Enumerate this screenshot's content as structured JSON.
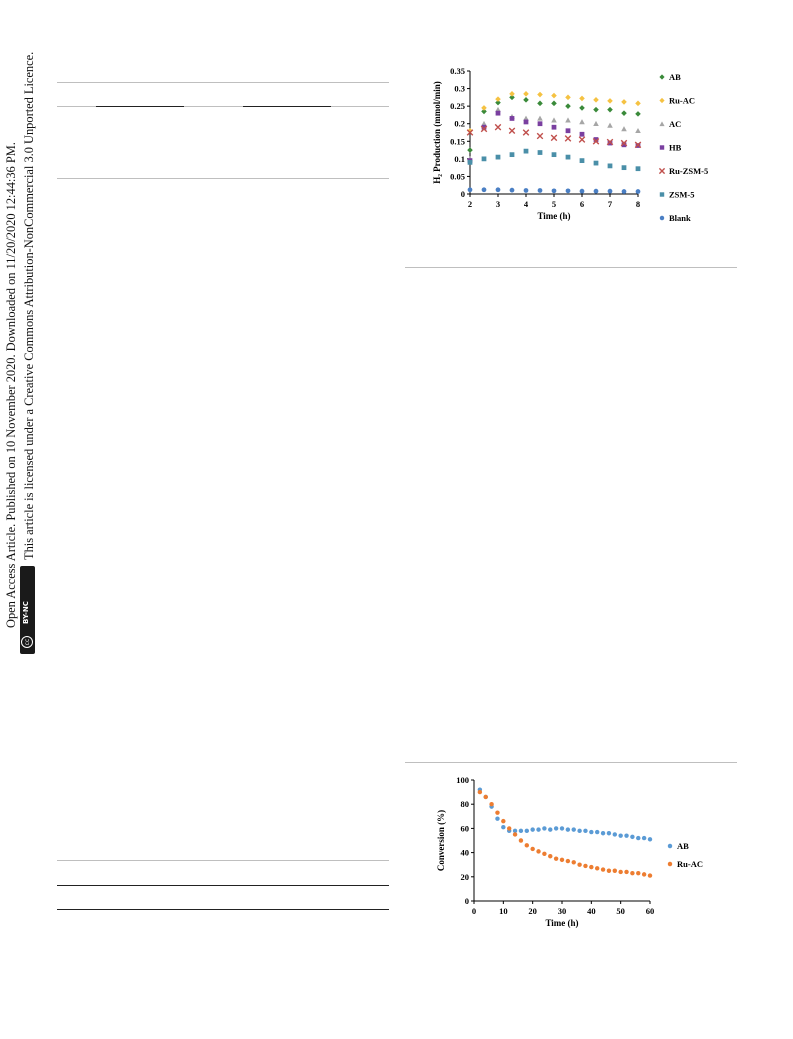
{
  "side_notice": {
    "line1": "Open Access Article. Published on 10 November 2020. Downloaded on 11/20/2020 12:44:36 PM.",
    "line2": "This article is licensed under a Creative Commons Attribution-NonCommercial 3.0 Unported Licence.",
    "license_badge": "BY-NC",
    "cc_icon": "cc-icon"
  },
  "chart_data": [
    {
      "type": "scatter",
      "xlabel": "Time (h)",
      "ylabel": "H₂ Production (mmol/min)",
      "xlim": [
        2,
        8
      ],
      "ylim": [
        0,
        0.35
      ],
      "xticks": [
        "2",
        "3",
        "4",
        "5",
        "6",
        "7",
        "8"
      ],
      "yticks": [
        "0",
        "0.05",
        "0.1",
        "0.15",
        "0.2",
        "0.25",
        "0.3",
        "0.35"
      ],
      "legend_position": "right",
      "series": [
        {
          "name": "AB",
          "color": "#3a8a3a",
          "marker": "diamond",
          "x": [
            2,
            2.5,
            3,
            3.5,
            4,
            4.5,
            5,
            5.5,
            6,
            6.5,
            7,
            7.5,
            8
          ],
          "y": [
            0.125,
            0.235,
            0.26,
            0.275,
            0.268,
            0.258,
            0.258,
            0.25,
            0.245,
            0.24,
            0.24,
            0.23,
            0.228
          ]
        },
        {
          "name": "Ru-AC",
          "color": "#f5c242",
          "marker": "diamond",
          "x": [
            2,
            2.5,
            3,
            3.5,
            4,
            4.5,
            5,
            5.5,
            6,
            6.5,
            7,
            7.5,
            8
          ],
          "y": [
            0.18,
            0.245,
            0.27,
            0.285,
            0.285,
            0.283,
            0.28,
            0.275,
            0.272,
            0.268,
            0.265,
            0.262,
            0.258
          ]
        },
        {
          "name": "AC",
          "color": "#a6a6a6",
          "marker": "triangle",
          "x": [
            2,
            2.5,
            3,
            3.5,
            4,
            4.5,
            5,
            5.5,
            6,
            6.5,
            7,
            7.5,
            8
          ],
          "y": [
            0.1,
            0.2,
            0.24,
            0.22,
            0.215,
            0.215,
            0.21,
            0.21,
            0.205,
            0.2,
            0.195,
            0.185,
            0.18
          ]
        },
        {
          "name": "HB",
          "color": "#7a3fa0",
          "marker": "square",
          "x": [
            2,
            2.5,
            3,
            3.5,
            4,
            4.5,
            5,
            5.5,
            6,
            6.5,
            7,
            7.5,
            8
          ],
          "y": [
            0.095,
            0.19,
            0.23,
            0.215,
            0.205,
            0.2,
            0.19,
            0.18,
            0.17,
            0.155,
            0.145,
            0.14,
            0.138
          ]
        },
        {
          "name": "Ru-ZSM-5",
          "color": "#c0504d",
          "marker": "x",
          "x": [
            2,
            2.5,
            3,
            3.5,
            4,
            4.5,
            5,
            5.5,
            6,
            6.5,
            7,
            7.5,
            8
          ],
          "y": [
            0.175,
            0.185,
            0.19,
            0.18,
            0.175,
            0.165,
            0.16,
            0.158,
            0.155,
            0.15,
            0.148,
            0.145,
            0.14
          ]
        },
        {
          "name": "ZSM-5",
          "color": "#4a8fa8",
          "marker": "square",
          "x": [
            2,
            2.5,
            3,
            3.5,
            4,
            4.5,
            5,
            5.5,
            6,
            6.5,
            7,
            7.5,
            8
          ],
          "y": [
            0.09,
            0.1,
            0.105,
            0.112,
            0.122,
            0.118,
            0.112,
            0.105,
            0.095,
            0.088,
            0.08,
            0.075,
            0.072
          ]
        },
        {
          "name": "Blank",
          "color": "#4a7fc4",
          "marker": "circle",
          "x": [
            2,
            2.5,
            3,
            3.5,
            4,
            4.5,
            5,
            5.5,
            6,
            6.5,
            7,
            7.5,
            8
          ],
          "y": [
            0.012,
            0.012,
            0.012,
            0.011,
            0.01,
            0.01,
            0.009,
            0.009,
            0.008,
            0.008,
            0.008,
            0.007,
            0.007
          ]
        }
      ]
    },
    {
      "type": "scatter",
      "xlabel": "Time (h)",
      "ylabel": "Conversion (%)",
      "xlim": [
        0,
        60
      ],
      "ylim": [
        0,
        100
      ],
      "xticks": [
        "0",
        "10",
        "20",
        "30",
        "40",
        "50",
        "60"
      ],
      "yticks": [
        "0",
        "20",
        "40",
        "60",
        "80",
        "100"
      ],
      "legend_position": "right",
      "series": [
        {
          "name": "AB",
          "color": "#5b9bd5",
          "x": [
            2,
            4,
            6,
            8,
            10,
            12,
            14,
            16,
            18,
            20,
            22,
            24,
            26,
            28,
            30,
            32,
            34,
            36,
            38,
            40,
            42,
            44,
            46,
            48,
            50,
            52,
            54,
            56,
            58,
            60
          ],
          "y": [
            92,
            86,
            78,
            68,
            61,
            58,
            58,
            58,
            58,
            59,
            59,
            60,
            59,
            60,
            60,
            59,
            59,
            58,
            58,
            57,
            57,
            56,
            56,
            55,
            54,
            54,
            53,
            52,
            52,
            51
          ]
        },
        {
          "name": "Ru-AC",
          "color": "#ed7d31",
          "x": [
            2,
            4,
            6,
            8,
            10,
            12,
            14,
            16,
            18,
            20,
            22,
            24,
            26,
            28,
            30,
            32,
            34,
            36,
            38,
            40,
            42,
            44,
            46,
            48,
            50,
            52,
            54,
            56,
            58,
            60
          ],
          "y": [
            90,
            86,
            80,
            73,
            66,
            60,
            55,
            50,
            46,
            43,
            41,
            39,
            37,
            35,
            34,
            33,
            32,
            30,
            29,
            28,
            27,
            26,
            25,
            25,
            24,
            24,
            23,
            23,
            22,
            21
          ]
        }
      ]
    }
  ]
}
